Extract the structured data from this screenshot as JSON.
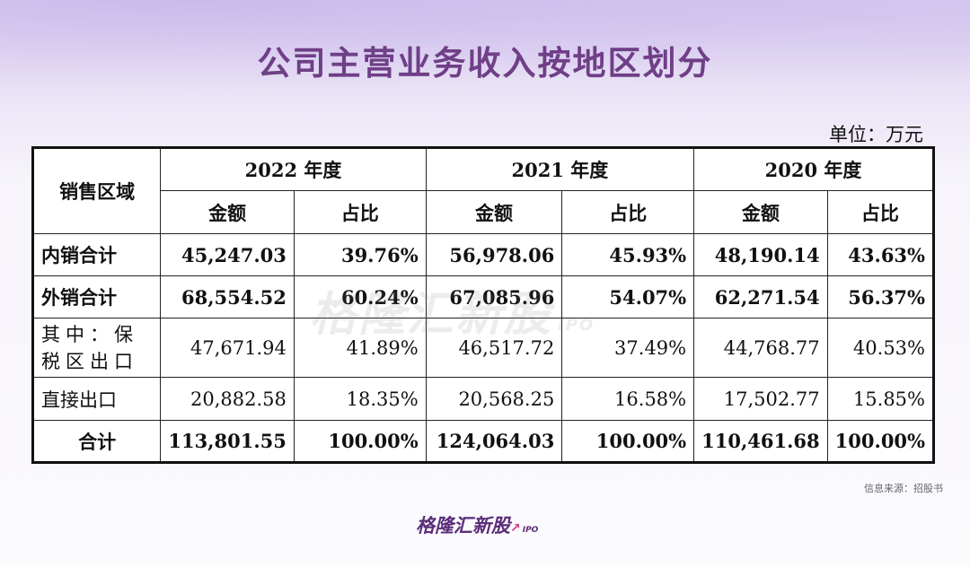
{
  "title": "公司主营业务收入按地区划分",
  "unit": "单位：万元",
  "table": {
    "region_header": "销售区域",
    "years": [
      "2022 年度",
      "2021 年度",
      "2020 年度"
    ],
    "sub_headers": [
      "金额",
      "占比"
    ],
    "rows": [
      {
        "label": "内销合计",
        "cells": [
          "45,247.03",
          "39.76%",
          "56,978.06",
          "45.93%",
          "48,190.14",
          "43.63%"
        ]
      },
      {
        "label": "外销合计",
        "cells": [
          "68,554.52",
          "60.24%",
          "67,085.96",
          "54.07%",
          "62,271.54",
          "56.37%"
        ]
      },
      {
        "label_line1": "其中：保",
        "label_line2": "税区出口",
        "cells": [
          "47,671.94",
          "41.89%",
          "46,517.72",
          "37.49%",
          "44,768.77",
          "40.53%"
        ]
      },
      {
        "label": "直接出口",
        "cells": [
          "20,882.58",
          "18.35%",
          "20,568.25",
          "16.58%",
          "17,502.77",
          "15.85%"
        ]
      },
      {
        "label": "合计",
        "cells": [
          "113,801.55",
          "100.00%",
          "124,064.03",
          "100.00%",
          "110,461.68",
          "100.00%"
        ]
      }
    ]
  },
  "watermark": {
    "text": "格隆汇新股",
    "sub": "IPO"
  },
  "source": "信息来源：招股书",
  "footer_logo": {
    "text": "格隆汇新股",
    "sub": "IPO"
  },
  "colors": {
    "title": "#6f3f87",
    "brand": "#5b2d7a",
    "accent": "#d33a8a"
  }
}
